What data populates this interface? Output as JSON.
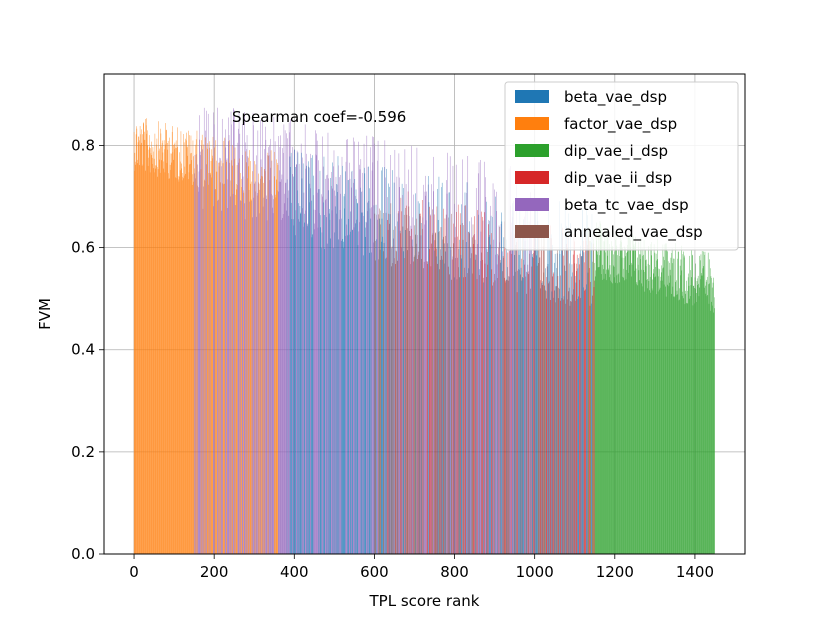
{
  "chart_data": {
    "type": "bar",
    "title": "",
    "xlabel": "TPL score rank",
    "ylabel": "FVM",
    "xlim": [
      -75,
      1525
    ],
    "ylim": [
      0.0,
      0.94
    ],
    "x_ticks": [
      0,
      200,
      400,
      600,
      800,
      1000,
      1200,
      1400
    ],
    "x_tick_labels": [
      "0",
      "200",
      "400",
      "600",
      "800",
      "1000",
      "1200",
      "1400"
    ],
    "y_ticks": [
      0.0,
      0.2,
      0.4,
      0.6,
      0.8
    ],
    "y_tick_labels": [
      "0.0",
      "0.2",
      "0.4",
      "0.6",
      "0.8"
    ],
    "grid": true,
    "legend_position": "top-right",
    "annotation": "Spearman coef=-0.596",
    "total_bars": 1450,
    "series": [
      {
        "name": "beta_vae_dsp",
        "color": "#1f77b4",
        "rank_start": 380,
        "rank_end": 1150,
        "fvm_min": 0.45,
        "fvm_max": 0.8
      },
      {
        "name": "factor_vae_dsp",
        "color": "#ff7f0e",
        "rank_start": 0,
        "rank_end": 360,
        "fvm_min": 0.66,
        "fvm_max": 0.86
      },
      {
        "name": "dip_vae_i_dsp",
        "color": "#2ca02c",
        "rank_start": 1130,
        "rank_end": 1450,
        "fvm_min": 0.45,
        "fvm_max": 0.66
      },
      {
        "name": "dip_vae_ii_dsp",
        "color": "#d62728",
        "rank_start": 630,
        "rank_end": 1150,
        "fvm_min": 0.45,
        "fvm_max": 0.72
      },
      {
        "name": "beta_tc_vae_dsp",
        "color": "#9467bd",
        "rank_start": 150,
        "rank_end": 1000,
        "fvm_min": 0.5,
        "fvm_max": 0.89
      },
      {
        "name": "annealed_vae_dsp",
        "color": "#8c564b",
        "rank_start": 600,
        "rank_end": 1100,
        "fvm_min": 0.46,
        "fvm_max": 0.7
      }
    ]
  }
}
